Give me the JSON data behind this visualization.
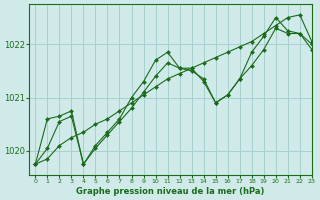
{
  "title": "Graphe pression niveau de la mer (hPa)",
  "bg_color": "#d0eaea",
  "grid_color": "#a8d0d0",
  "line_color": "#1a6b1a",
  "marker_color": "#1a6b1a",
  "xlim": [
    -0.5,
    23
  ],
  "ylim": [
    1019.55,
    1022.75
  ],
  "yticks": [
    1020,
    1021,
    1022
  ],
  "xticks": [
    0,
    1,
    2,
    3,
    4,
    5,
    6,
    7,
    8,
    9,
    10,
    11,
    12,
    13,
    14,
    15,
    16,
    17,
    18,
    19,
    20,
    21,
    22,
    23
  ],
  "series": [
    [
      1019.75,
      1020.05,
      1020.55,
      1020.65,
      1019.75,
      1020.05,
      1020.3,
      1020.55,
      1020.8,
      1021.1,
      1021.4,
      1021.65,
      1021.55,
      1021.5,
      1021.35,
      1020.9,
      1021.05,
      1021.35,
      1021.6,
      1021.9,
      1022.3,
      1022.2,
      1022.2,
      1021.9
    ],
    [
      1019.75,
      1020.6,
      1020.65,
      1020.75,
      1019.75,
      1020.1,
      1020.35,
      1020.6,
      1021.0,
      1021.3,
      1021.7,
      1021.85,
      1021.55,
      1021.55,
      1021.3,
      1020.9,
      1021.05,
      1021.35,
      1021.85,
      1022.15,
      1022.5,
      1022.25,
      1022.2,
      1022.0
    ],
    [
      1019.75,
      1019.85,
      1020.1,
      1020.25,
      1020.35,
      1020.5,
      1020.6,
      1020.75,
      1020.9,
      1021.05,
      1021.2,
      1021.35,
      1021.45,
      1021.55,
      1021.65,
      1021.75,
      1021.85,
      1021.95,
      1022.05,
      1022.2,
      1022.35,
      1022.5,
      1022.55,
      1022.05
    ]
  ]
}
